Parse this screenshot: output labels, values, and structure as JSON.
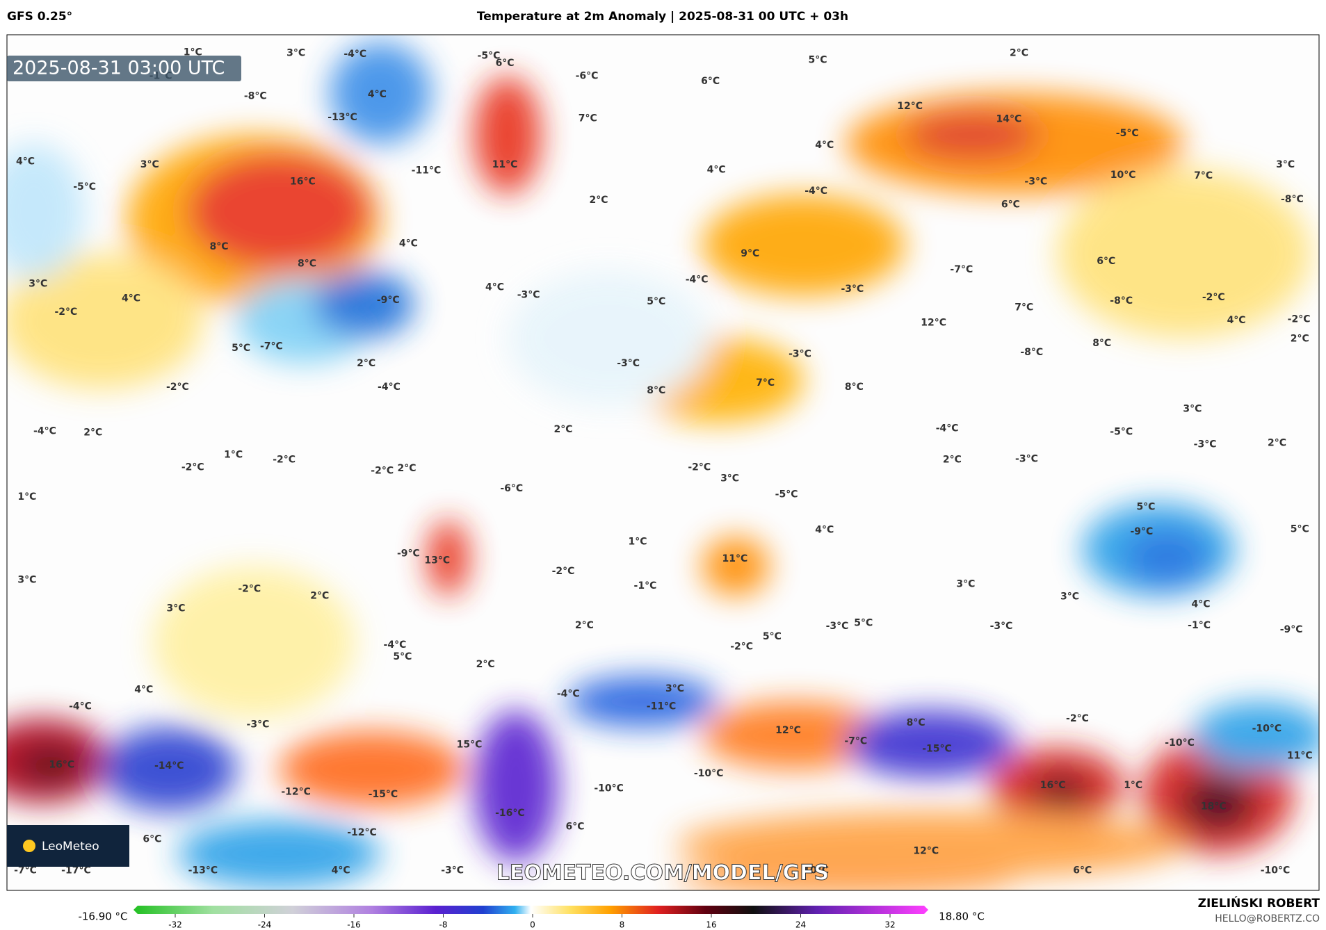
{
  "header": {
    "model": "GFS 0.25°",
    "title": "Temperature at 2m Anomaly | 2025-08-31 00 UTC + 03h"
  },
  "map": {
    "timestamp": "2025-08-31 03:00 UTC",
    "logo": "LeoMeteo",
    "watermark": "LEOMETEO.COM/MODEL/GFS",
    "labels": [
      "3°C",
      "-4°C",
      "-5°C",
      "6°C",
      "5°C",
      "2°C",
      "-1°C",
      "-8°C",
      "4°C",
      "-6°C",
      "6°C",
      "12°C",
      "-13°C",
      "7°C",
      "14°C",
      "-5°C",
      "4°C",
      "3°C",
      "11°C",
      "4°C",
      "4°C",
      "3°C",
      "-5°C",
      "16°C",
      "-11°C",
      "2°C",
      "-4°C",
      "-3°C",
      "10°C",
      "7°C",
      "-8°C",
      "6°C",
      "8°C",
      "4°C",
      "8°C",
      "9°C",
      "6°C",
      "-7°C",
      "3°C",
      "4°C",
      "-3°C",
      "4°C",
      "-9°C",
      "5°C",
      "-4°C",
      "-3°C",
      "-8°C",
      "-2°C",
      "-2°C",
      "7°C",
      "12°C",
      "4°C",
      "-2°C",
      "2°C",
      "5°C",
      "-7°C",
      "-3°C",
      "-8°C",
      "8°C",
      "2°C",
      "-3°C",
      "-2°C",
      "-4°C",
      "8°C",
      "7°C",
      "8°C",
      "3°C",
      "-4°C",
      "2°C",
      "2°C",
      "-4°C",
      "-5°C",
      "-3°C",
      "2°C",
      "1°C",
      "-2°C",
      "-2°C",
      "-2°C",
      "2°C",
      "-2°C",
      "2°C",
      "-3°C",
      "3°C",
      "-6°C",
      "-5°C",
      "1°C",
      "5°C",
      "-9°C",
      "4°C",
      "5°C",
      "1°C",
      "-9°C",
      "13°C",
      "11°C",
      "-2°C",
      "3°C",
      "-2°C",
      "-1°C",
      "3°C",
      "2°C",
      "3°C",
      "3°C",
      "4°C",
      "2°C",
      "5°C",
      "-3°C",
      "-3°C",
      "-1°C",
      "-9°C",
      "5°C",
      "-2°C",
      "-4°C",
      "5°C",
      "2°C",
      "3°C",
      "4°C",
      "-4°C",
      "-4°C",
      "-11°C",
      "-3°C",
      "-2°C",
      "8°C",
      "12°C",
      "-10°C",
      "-7°C",
      "-15°C",
      "-10°C",
      "15°C",
      "16°C",
      "-14°C",
      "11°C",
      "-10°C",
      "16°C",
      "1°C",
      "-12°C",
      "-15°C",
      "-10°C",
      "18°C",
      "-16°C",
      "6°C",
      "-12°C",
      "6°C",
      "12°C",
      "-7°C",
      "-17°C",
      "-13°C",
      "4°C",
      "-3°C",
      "10°C",
      "6°C",
      "-10°C",
      "1°C"
    ]
  },
  "colorbar": {
    "min_label": "-16.90 °C",
    "max_label": "18.80 °C",
    "ticks": [
      -32,
      -24,
      -16,
      -8,
      0,
      8,
      16,
      24,
      32
    ]
  },
  "footer": {
    "author": "ZIELIŃSKI ROBERT",
    "email": "HELLO@ROBERTZ.CO"
  }
}
